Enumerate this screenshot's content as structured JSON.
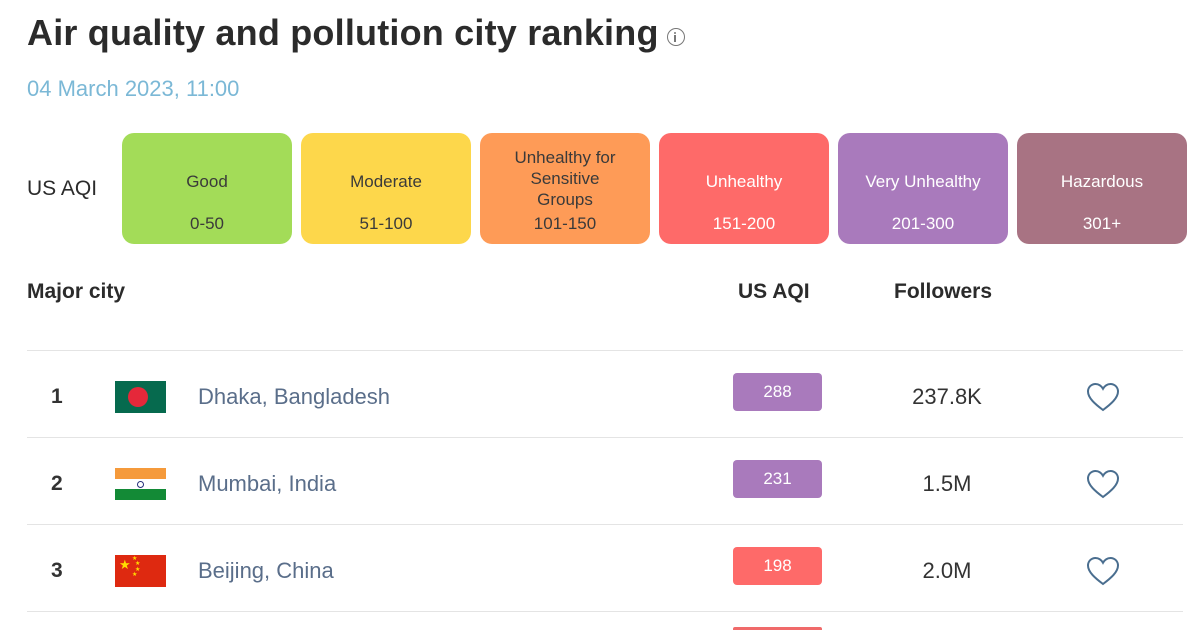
{
  "header": {
    "title": "Air quality and pollution city ranking",
    "timestamp": "04 March 2023, 11:00"
  },
  "legend": {
    "label": "US AQI",
    "items": [
      {
        "name": "Good",
        "range": "0-50",
        "bg": "#a3dc58",
        "fg": "#3a3a3a"
      },
      {
        "name": "Moderate",
        "range": "51-100",
        "bg": "#fdd74b",
        "fg": "#3a3a3a"
      },
      {
        "name": "Unhealthy for Sensitive Groups",
        "range": "101-150",
        "bg": "#fe9b57",
        "fg": "#3a3a3a"
      },
      {
        "name": "Unhealthy",
        "range": "151-200",
        "bg": "#fe6a69",
        "fg": "#ffffff"
      },
      {
        "name": "Very Unhealthy",
        "range": "201-300",
        "bg": "#a97abc",
        "fg": "#ffffff"
      },
      {
        "name": "Hazardous",
        "range": "301+",
        "bg": "#a87383",
        "fg": "#ffffff"
      }
    ]
  },
  "table": {
    "headers": {
      "city": "Major city",
      "aqi": "US AQI",
      "followers": "Followers"
    },
    "rows": [
      {
        "rank": "1",
        "city": "Dhaka, Bangladesh",
        "aqi": "288",
        "aqi_color": "#a97abc",
        "followers": "237.8K",
        "flag": "bangladesh-flag"
      },
      {
        "rank": "2",
        "city": "Mumbai, India",
        "aqi": "231",
        "aqi_color": "#a97abc",
        "followers": "1.5M",
        "flag": "india-flag"
      },
      {
        "rank": "3",
        "city": "Beijing, China",
        "aqi": "198",
        "aqi_color": "#fe6a69",
        "followers": "2.0M",
        "flag": "china-flag"
      }
    ]
  }
}
